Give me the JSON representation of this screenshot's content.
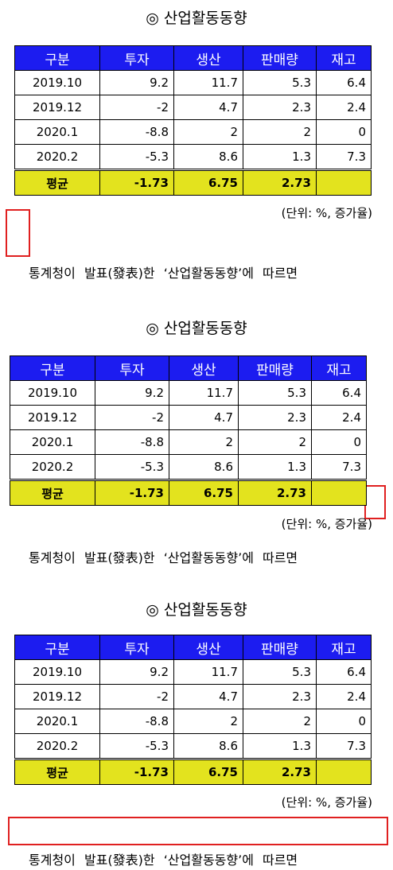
{
  "blocks": [
    {
      "title": "◎ 산업활동동향",
      "table": {
        "header": [
          "구분",
          "투자",
          "생산",
          "판매량",
          "재고"
        ],
        "rows": [
          [
            "2019.10",
            "9.2",
            "11.7",
            "5.3",
            "6.4"
          ],
          [
            "2019.12",
            "-2",
            "4.7",
            "2.3",
            "2.4"
          ],
          [
            "2020.1",
            "-8.8",
            "2",
            "2",
            "0"
          ],
          [
            "2020.2",
            "-5.3",
            "8.6",
            "1.3",
            "7.3"
          ]
        ],
        "average": [
          "평균",
          "-1.73",
          "6.75",
          "2.73"
        ]
      },
      "unit": "(단위: %, 증가율)",
      "paragraph": "통계청이 발표(發表)한 ‘산업활동동향’에 따르면"
    },
    {
      "title": "◎ 산업활동동향",
      "table": {
        "header": [
          "구분",
          "투자",
          "생산",
          "판매량",
          "재고"
        ],
        "rows": [
          [
            "2019.10",
            "9.2",
            "11.7",
            "5.3",
            "6.4"
          ],
          [
            "2019.12",
            "-2",
            "4.7",
            "2.3",
            "2.4"
          ],
          [
            "2020.1",
            "-8.8",
            "2",
            "2",
            "0"
          ],
          [
            "2020.2",
            "-5.3",
            "8.6",
            "1.3",
            "7.3"
          ]
        ],
        "average": [
          "평균",
          "-1.73",
          "6.75",
          "2.73"
        ]
      },
      "unit": "(단위: %, 증가율)",
      "paragraph": "통계청이 발표(發表)한 ‘산업활동동향’에 따르면"
    },
    {
      "title": "◎ 산업활동동향",
      "table": {
        "header": [
          "구분",
          "투자",
          "생산",
          "판매량",
          "재고"
        ],
        "rows": [
          [
            "2019.10",
            "9.2",
            "11.7",
            "5.3",
            "6.4"
          ],
          [
            "2019.12",
            "-2",
            "4.7",
            "2.3",
            "2.4"
          ],
          [
            "2020.1",
            "-8.8",
            "2",
            "2",
            "0"
          ],
          [
            "2020.2",
            "-5.3",
            "8.6",
            "1.3",
            "7.3"
          ]
        ],
        "average": [
          "평균",
          "-1.73",
          "6.75",
          "2.73"
        ]
      },
      "unit": "(단위: %, 증가율)",
      "paragraph": "통계청이 발표(發表)한 ‘산업활동동향’에 따르면"
    }
  ]
}
